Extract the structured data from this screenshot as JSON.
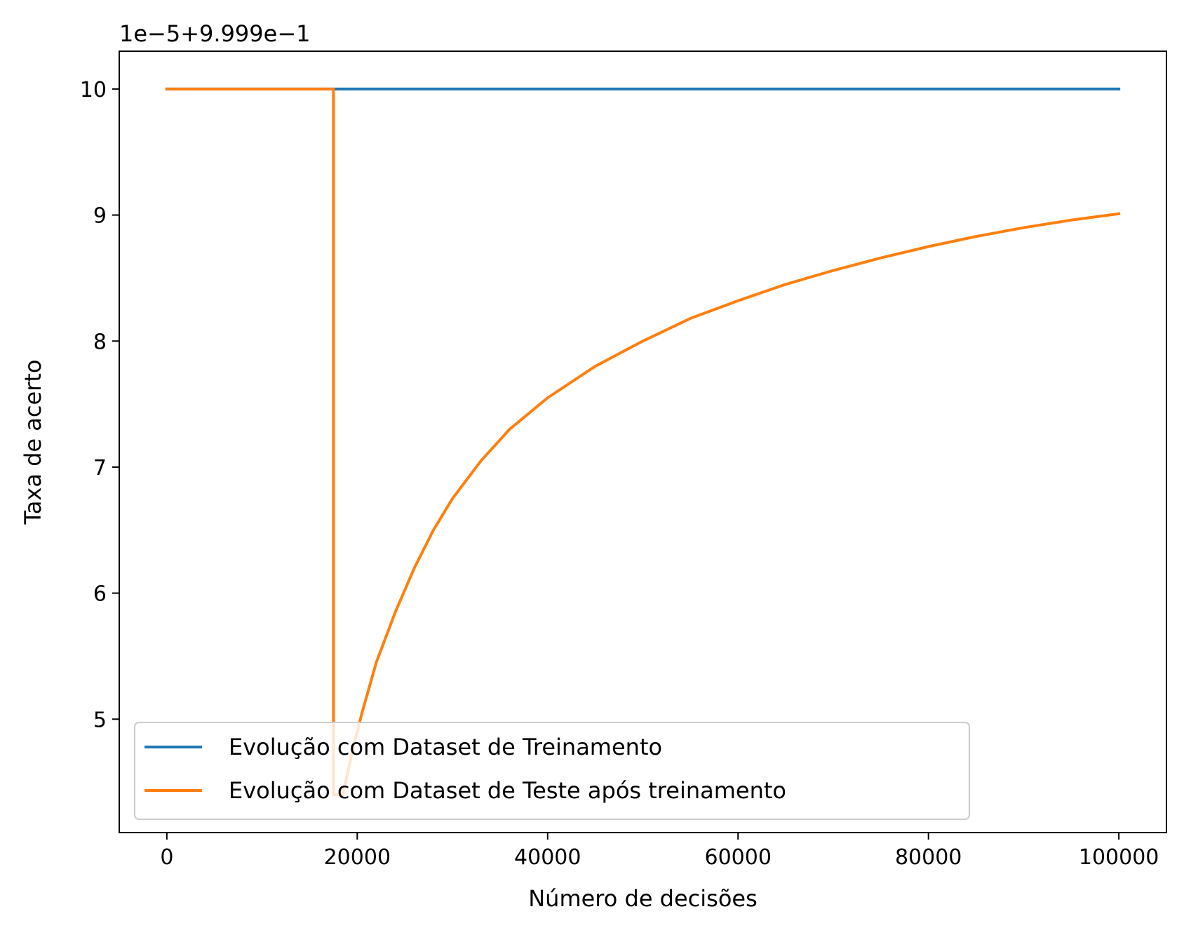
{
  "chart_data": {
    "type": "line",
    "title": "",
    "xlabel": "Número de decisões",
    "ylabel": "Taxa de acerto",
    "y_offset_text": "1e−5+9.999e−1",
    "xlim": [
      -5000,
      105000
    ],
    "ylim": [
      4.1,
      10.3
    ],
    "x_ticks": [
      0,
      20000,
      40000,
      60000,
      80000,
      100000
    ],
    "x_tick_labels": [
      "0",
      "20000",
      "40000",
      "60000",
      "80000",
      "100000"
    ],
    "y_ticks": [
      5,
      6,
      7,
      8,
      9,
      10
    ],
    "y_tick_labels": [
      "5",
      "6",
      "7",
      "8",
      "9",
      "10"
    ],
    "grid": false,
    "legend_position": "lower-left",
    "series": [
      {
        "name": "Evolução com Dataset de Treinamento",
        "color": "#1f77b4",
        "x": [
          0,
          100000
        ],
        "y": [
          10.0,
          10.0
        ]
      },
      {
        "name": "Evolução com Dataset de Teste após treinamento",
        "color": "#ff7f0e",
        "x": [
          0,
          17500,
          17500,
          18500,
          19500,
          20500,
          22000,
          24000,
          26000,
          28000,
          30000,
          33000,
          36000,
          40000,
          45000,
          50000,
          55000,
          60000,
          65000,
          70000,
          75000,
          80000,
          85000,
          90000,
          95000,
          100000
        ],
        "y": [
          10.0,
          10.0,
          4.4,
          4.4,
          4.75,
          5.05,
          5.45,
          5.85,
          6.2,
          6.5,
          6.75,
          7.05,
          7.3,
          7.55,
          7.8,
          8.0,
          8.18,
          8.32,
          8.45,
          8.56,
          8.66,
          8.75,
          8.83,
          8.9,
          8.96,
          9.01
        ]
      }
    ]
  }
}
